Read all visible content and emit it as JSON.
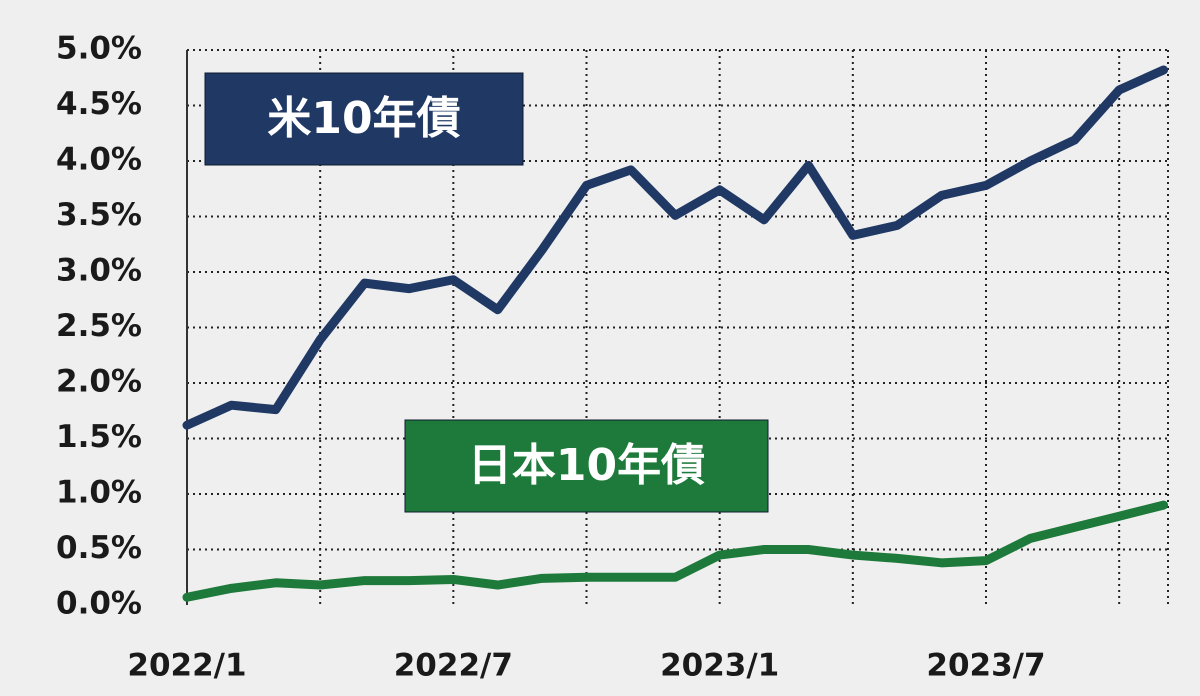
{
  "chart_data": {
    "type": "line",
    "x": [
      "2022/1",
      "2022/2",
      "2022/3",
      "2022/4",
      "2022/5",
      "2022/6",
      "2022/7",
      "2022/8",
      "2022/9",
      "2022/10",
      "2022/11",
      "2022/12",
      "2023/1",
      "2023/2",
      "2023/3",
      "2023/4",
      "2023/5",
      "2023/6",
      "2023/7",
      "2023/8",
      "2023/9",
      "2023/10",
      "2023/11"
    ],
    "xticks": [
      "2022/1",
      "2022/7",
      "2023/1",
      "2023/7"
    ],
    "series": [
      {
        "name": "米10年債",
        "color": "#1f3864",
        "values": [
          1.62,
          1.8,
          1.76,
          2.39,
          2.9,
          2.85,
          2.93,
          2.66,
          3.2,
          3.78,
          3.92,
          3.51,
          3.74,
          3.47,
          3.96,
          3.33,
          3.42,
          3.69,
          3.78,
          4.0,
          4.19,
          4.64,
          4.82
        ]
      },
      {
        "name": "日本10年債",
        "color": "#1e7a3a",
        "values": [
          0.07,
          0.15,
          0.2,
          0.18,
          0.22,
          0.22,
          0.23,
          0.18,
          0.24,
          0.25,
          0.25,
          0.25,
          0.45,
          0.5,
          0.5,
          0.45,
          0.42,
          0.38,
          0.4,
          0.6,
          0.7,
          0.8,
          0.9
        ]
      }
    ],
    "ylim": [
      0,
      5
    ],
    "yticks": [
      {
        "value": 0,
        "label": "0.0%"
      },
      {
        "value": 0.5,
        "label": "0.5%"
      },
      {
        "value": 1,
        "label": "1.0%"
      },
      {
        "value": 1.5,
        "label": "1.5%"
      },
      {
        "value": 2,
        "label": "2.0%"
      },
      {
        "value": 2.5,
        "label": "2.5%"
      },
      {
        "value": 3,
        "label": "3.0%"
      },
      {
        "value": 3.5,
        "label": "3.5%"
      },
      {
        "value": 4,
        "label": "4.0%"
      },
      {
        "value": 4.5,
        "label": "4.5%"
      },
      {
        "value": 5,
        "label": "5.0%"
      }
    ],
    "grid": true
  }
}
